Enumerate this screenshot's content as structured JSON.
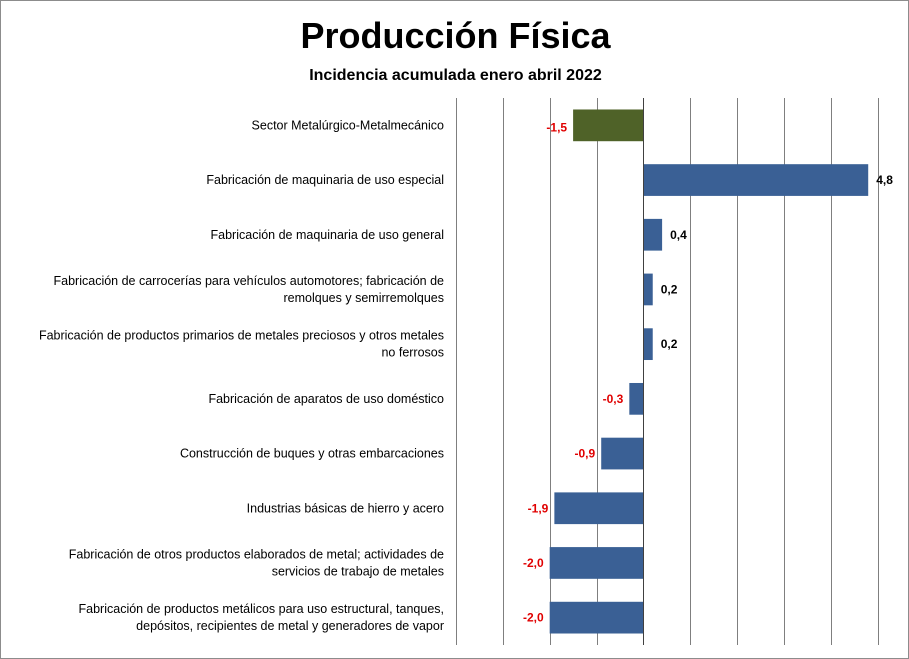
{
  "colors": {
    "bar": "#3a6095",
    "highlight_bar": "#4f6228",
    "negative_label": "#e00000",
    "positive_label": "#000000",
    "grid": "#7f7f7f"
  },
  "chart_data": {
    "type": "bar",
    "orientation": "horizontal",
    "title": "Producción Física",
    "subtitle": "Incidencia acumulada  enero abril 2022",
    "xlim": [
      -4.0,
      5.5
    ],
    "grid": "vertical",
    "categories": [
      "Sector Metalúrgico-Metalmecánico",
      "Fabricación de maquinaria de uso especial",
      "Fabricación de maquinaria de uso general",
      "Fabricación de carrocerías para vehículos automotores; fabricación de remolques y semirremolques",
      "Fabricación de productos primarios de metales preciosos y otros metales no ferrosos",
      "Fabricación de aparatos de uso doméstico",
      "Construcción de buques y otras embarcaciones",
      "Industrias básicas de hierro y acero",
      "Fabricación de otros productos elaborados de metal; actividades de servicios de trabajo de metales",
      "Fabricación de productos metálicos para uso estructural, tanques, depósitos, recipientes de metal y generadores de vapor"
    ],
    "category_lines": [
      [
        "Sector Metalúrgico-Metalmecánico"
      ],
      [
        "Fabricación de maquinaria de uso especial"
      ],
      [
        "Fabricación de maquinaria de uso general"
      ],
      [
        "Fabricación de carrocerías para vehículos automotores; fabricación de",
        "remolques y semirremolques"
      ],
      [
        "Fabricación de productos primarios de metales preciosos y otros metales",
        "no ferrosos"
      ],
      [
        "Fabricación de aparatos de uso doméstico"
      ],
      [
        "Construcción de buques y otras embarcaciones"
      ],
      [
        "Industrias básicas de hierro y acero"
      ],
      [
        "Fabricación de otros productos elaborados de metal; actividades de",
        "servicios de trabajo de metales"
      ],
      [
        "Fabricación de productos metálicos para uso estructural, tanques,",
        "depósitos, recipientes de metal y generadores de vapor"
      ]
    ],
    "values": [
      -1.5,
      4.8,
      0.4,
      0.2,
      0.2,
      -0.3,
      -0.9,
      -1.9,
      -2.0,
      -2.0
    ],
    "value_labels": [
      "-1,5",
      "4,8",
      "0,4",
      "0,2",
      "0,2",
      "-0,3",
      "-0,9",
      "-1,9",
      "-2,0",
      "-2,0"
    ],
    "highlight_index": 0
  }
}
